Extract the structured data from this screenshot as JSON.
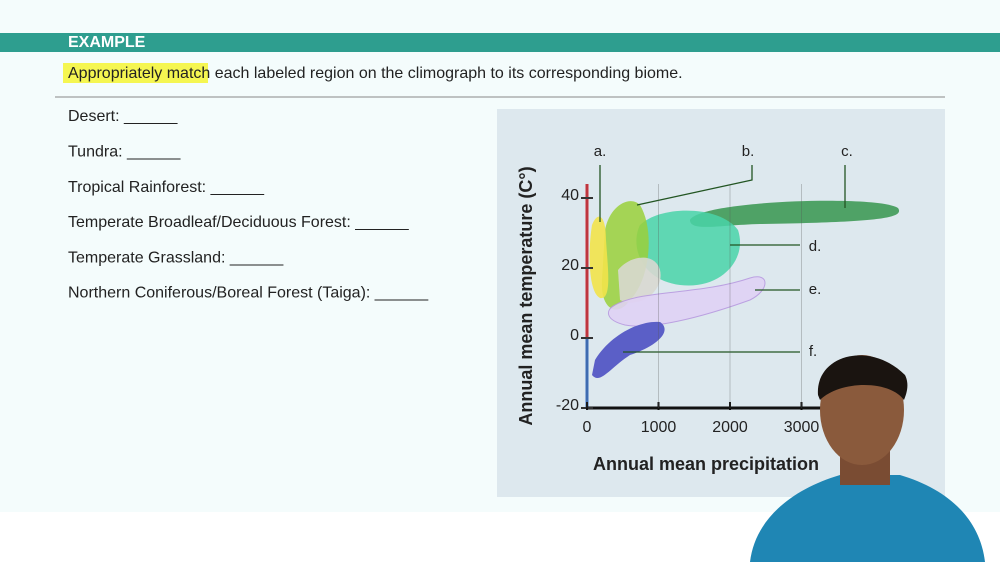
{
  "header": {
    "title": "EXAMPLE"
  },
  "question": "Appropriately match each labeled region on the climograph to its corresponding biome.",
  "items": [
    "Desert: ______",
    "Tundra: ______",
    "Tropical Rainforest: ______",
    "Temperate Broadleaf/Deciduous Forest: ______",
    "Temperate Grassland: ______",
    "Northern Coniferous/Boreal Forest (Taiga): ______"
  ],
  "chart_data": {
    "type": "climograph",
    "y_label": "Annual mean temperature (C°)",
    "x_label": "Annual mean precipitation",
    "ylim": [
      -20,
      44
    ],
    "yticks": [
      40,
      20,
      0,
      -20
    ],
    "xlim": [
      0,
      4000
    ],
    "xticks": [
      0,
      1000,
      2000,
      3000
    ],
    "regions": [
      "a.",
      "b.",
      "c.",
      "d.",
      "e.",
      "f."
    ]
  }
}
